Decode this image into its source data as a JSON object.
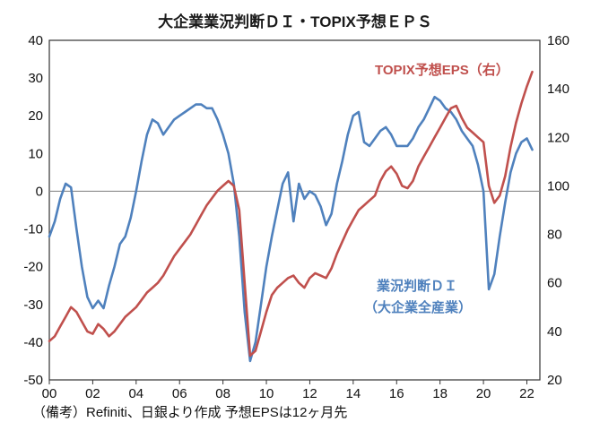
{
  "title": "大企業業況判断ＤＩ・TOPIX予想ＥＰＳ",
  "footer_note": "（備考）Refiniti、日銀より作成 予想EPSは12ヶ月先",
  "annotations": {
    "eps_label": "TOPIX予想EPS（右）",
    "di_label_line1": "業況判断ＤＩ",
    "di_label_line2": "（大企業全産業）"
  },
  "colors": {
    "di_blue": "#4f81bd",
    "eps_red": "#c0504d",
    "zero_line": "#8c8c8c",
    "axis": "#333333",
    "text": "#111111"
  },
  "chart_data": {
    "type": "line",
    "title": "大企業業況判断ＤＩ・TOPIX予想ＥＰＳ",
    "xlabel": "",
    "ylabel_left": "業況判断ＤＩ",
    "ylabel_right": "TOPIX予想EPS",
    "grid": false,
    "zero_reference_line_left_axis": 0,
    "xlim": [
      2000,
      2022.6
    ],
    "x_tick_values": [
      2000,
      2002,
      2004,
      2006,
      2008,
      2010,
      2012,
      2014,
      2016,
      2018,
      2020,
      2022
    ],
    "x_tick_labels": [
      "00",
      "02",
      "04",
      "06",
      "08",
      "10",
      "12",
      "14",
      "16",
      "18",
      "20",
      "22"
    ],
    "left_axis": {
      "ylim": [
        -50,
        40
      ],
      "ticks": [
        40,
        30,
        20,
        10,
        0,
        -10,
        -20,
        -30,
        -40,
        -50
      ]
    },
    "right_axis": {
      "ylim": [
        20,
        160
      ],
      "ticks": [
        160,
        140,
        120,
        100,
        80,
        60,
        40,
        20
      ]
    },
    "x_start": 2000.0,
    "x_step_years": 0.25,
    "frequency": "quarterly",
    "series": [
      {
        "name": "業況判断ＤＩ（大企業全産業）",
        "axis": "left",
        "color": "#4f81bd",
        "values": [
          -12,
          -8,
          -2,
          2,
          1,
          -10,
          -20,
          -28,
          -31,
          -29,
          -31,
          -25,
          -20,
          -14,
          -12,
          -7,
          0,
          8,
          15,
          19,
          18,
          15,
          17,
          19,
          20,
          21,
          22,
          23,
          23,
          22,
          22,
          19,
          15,
          10,
          2,
          -12,
          -32,
          -45,
          -40,
          -30,
          -20,
          -12,
          -5,
          2,
          5,
          -8,
          2,
          -2,
          0,
          -1,
          -4,
          -9,
          -6,
          2,
          8,
          15,
          20,
          21,
          13,
          12,
          14,
          16,
          17,
          15,
          12,
          12,
          12,
          14,
          17,
          19,
          22,
          25,
          24,
          22,
          21,
          19,
          16,
          14,
          12,
          7,
          0,
          -26,
          -22,
          -12,
          -3,
          5,
          10,
          13,
          14,
          11
        ]
      },
      {
        "name": "TOPIX予想EPS（右）",
        "axis": "right",
        "color": "#c0504d",
        "values": [
          36,
          38,
          42,
          46,
          50,
          48,
          44,
          40,
          39,
          43,
          41,
          38,
          40,
          43,
          46,
          48,
          50,
          53,
          56,
          58,
          60,
          63,
          67,
          71,
          74,
          77,
          80,
          84,
          88,
          92,
          95,
          98,
          100,
          102,
          100,
          90,
          60,
          30,
          32,
          40,
          48,
          55,
          58,
          60,
          62,
          63,
          60,
          58,
          62,
          64,
          63,
          62,
          66,
          72,
          77,
          82,
          86,
          90,
          92,
          94,
          96,
          102,
          106,
          108,
          105,
          100,
          99,
          102,
          108,
          112,
          116,
          120,
          124,
          128,
          132,
          133,
          128,
          124,
          122,
          120,
          118,
          100,
          93,
          96,
          104,
          116,
          126,
          134,
          141,
          147
        ]
      }
    ],
    "legend_position": "annotations-inside-plot"
  }
}
